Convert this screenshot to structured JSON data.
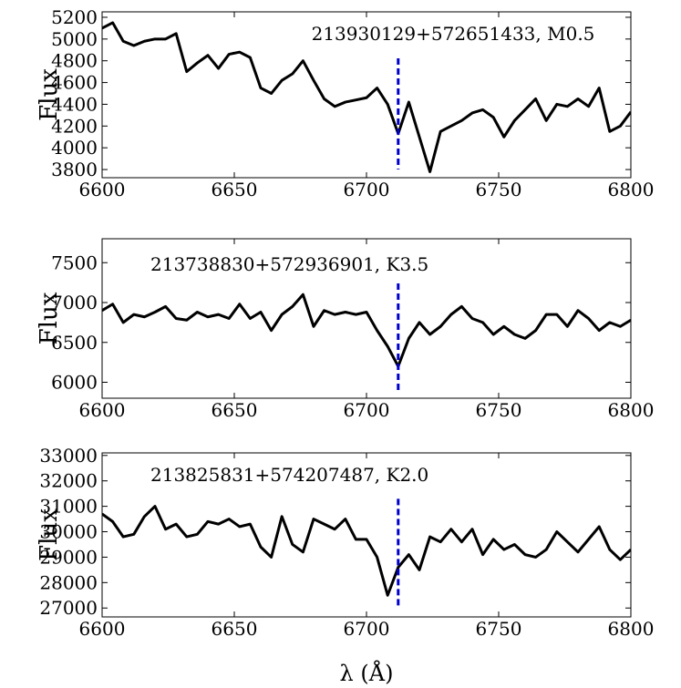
{
  "chart_data": [
    {
      "type": "line",
      "title": "213930129+572651433, M0.5",
      "ylabel": "Flux",
      "x": [
        6600,
        6604,
        6608,
        6612,
        6616,
        6620,
        6624,
        6628,
        6632,
        6636,
        6640,
        6644,
        6648,
        6652,
        6656,
        6660,
        6664,
        6668,
        6672,
        6676,
        6680,
        6684,
        6688,
        6692,
        6696,
        6700,
        6704,
        6708,
        6712,
        6716,
        6720,
        6724,
        6728,
        6732,
        6736,
        6740,
        6744,
        6748,
        6752,
        6756,
        6760,
        6764,
        6768,
        6772,
        6776,
        6780,
        6784,
        6788,
        6792,
        6796,
        6800
      ],
      "series": [
        {
          "name": null,
          "color": "#000000",
          "values": [
            5100,
            5150,
            4980,
            4940,
            4980,
            5000,
            5000,
            5050,
            4700,
            4780,
            4850,
            4730,
            4860,
            4880,
            4830,
            4550,
            4500,
            4620,
            4680,
            4800,
            4620,
            4450,
            4380,
            4420,
            4440,
            4460,
            4550,
            4400,
            4130,
            4420,
            4100,
            3780,
            4150,
            4200,
            4250,
            4320,
            4350,
            4280,
            4100,
            4250,
            4350,
            4450,
            4250,
            4400,
            4380,
            4450,
            4380,
            4550,
            4150,
            4200,
            4330
          ]
        }
      ],
      "vline": {
        "x": 6712,
        "color": "#0000cc"
      },
      "xlim": [
        6600,
        6800
      ],
      "xticks": [
        6600,
        6650,
        6700,
        6750,
        6800
      ],
      "ylim": [
        3725,
        5250
      ],
      "yticks": [
        3800,
        4000,
        4200,
        4400,
        4600,
        4800,
        5000,
        5200
      ]
    },
    {
      "type": "line",
      "title": "213738830+572936901, K3.5",
      "ylabel": "Flux",
      "x": [
        6600,
        6604,
        6608,
        6612,
        6616,
        6620,
        6624,
        6628,
        6632,
        6636,
        6640,
        6644,
        6648,
        6652,
        6656,
        6660,
        6664,
        6668,
        6672,
        6676,
        6680,
        6684,
        6688,
        6692,
        6696,
        6700,
        6704,
        6708,
        6712,
        6716,
        6720,
        6724,
        6728,
        6732,
        6736,
        6740,
        6744,
        6748,
        6752,
        6756,
        6760,
        6764,
        6768,
        6772,
        6776,
        6780,
        6784,
        6788,
        6792,
        6796,
        6800
      ],
      "series": [
        {
          "name": null,
          "color": "#000000",
          "values": [
            6900,
            6980,
            6750,
            6850,
            6820,
            6880,
            6950,
            6800,
            6780,
            6880,
            6820,
            6850,
            6800,
            6980,
            6800,
            6880,
            6650,
            6850,
            6950,
            7100,
            6700,
            6900,
            6850,
            6880,
            6850,
            6880,
            6650,
            6450,
            6200,
            6550,
            6750,
            6600,
            6700,
            6850,
            6950,
            6800,
            6750,
            6600,
            6700,
            6600,
            6550,
            6650,
            6850,
            6850,
            6700,
            6900,
            6800,
            6650,
            6750,
            6700,
            6780
          ]
        }
      ],
      "vline": {
        "x": 6712,
        "color": "#0000cc"
      },
      "xlim": [
        6600,
        6800
      ],
      "xticks": [
        6600,
        6650,
        6700,
        6750,
        6800
      ],
      "ylim": [
        5800,
        7800
      ],
      "yticks": [
        6000,
        6500,
        7000,
        7500
      ]
    },
    {
      "type": "line",
      "title": "213825831+574207487, K2.0",
      "ylabel": "Flux",
      "xlabel": "λ (Å)",
      "x": [
        6600,
        6604,
        6608,
        6612,
        6616,
        6620,
        6624,
        6628,
        6632,
        6636,
        6640,
        6644,
        6648,
        6652,
        6656,
        6660,
        6664,
        6668,
        6672,
        6676,
        6680,
        6684,
        6688,
        6692,
        6696,
        6700,
        6704,
        6708,
        6712,
        6716,
        6720,
        6724,
        6728,
        6732,
        6736,
        6740,
        6744,
        6748,
        6752,
        6756,
        6760,
        6764,
        6768,
        6772,
        6776,
        6780,
        6784,
        6788,
        6792,
        6796,
        6800
      ],
      "series": [
        {
          "name": null,
          "color": "#000000",
          "values": [
            30700,
            30400,
            29800,
            29900,
            30600,
            31000,
            30100,
            30300,
            29800,
            29900,
            30400,
            30300,
            30500,
            30200,
            30300,
            29400,
            29000,
            30600,
            29500,
            29200,
            30500,
            30300,
            30100,
            30500,
            29700,
            29700,
            29000,
            27500,
            28600,
            29100,
            28500,
            29800,
            29600,
            30100,
            29600,
            30100,
            29100,
            29700,
            29300,
            29500,
            29100,
            29000,
            29300,
            30000,
            29600,
            29200,
            29700,
            30200,
            29300,
            28900,
            29300
          ]
        }
      ],
      "vline": {
        "x": 6712,
        "color": "#0000cc"
      },
      "xlim": [
        6600,
        6800
      ],
      "xticks": [
        6600,
        6650,
        6700,
        6750,
        6800
      ],
      "ylim": [
        26650,
        33100
      ],
      "yticks": [
        27000,
        28000,
        29000,
        30000,
        31000,
        32000,
        33000
      ]
    }
  ]
}
